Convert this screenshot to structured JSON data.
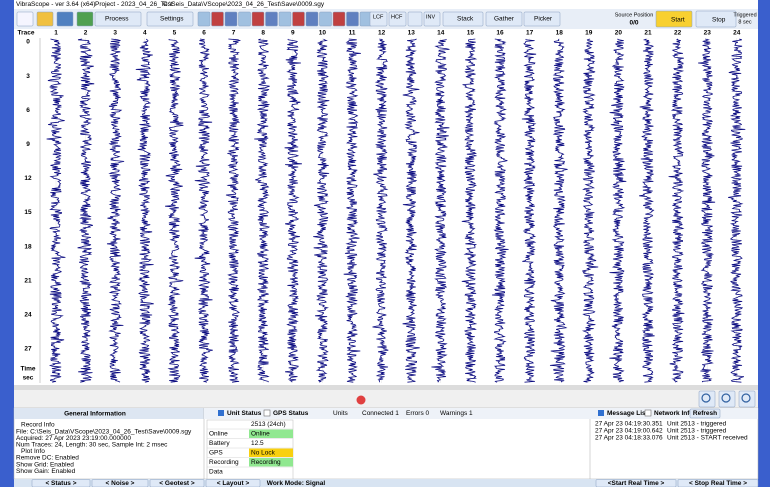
{
  "title_bar": {
    "app": "VibraScope - ver 3.64 (x64)",
    "project": "Project - 2023_04_26_Test",
    "path": "C:\\Seis_Data\\VScope\\2023_04_26_Test\\Save\\0009.sgy"
  },
  "toolbar": {
    "process": "Process",
    "settings": "Settings",
    "lcf": "LCF",
    "hcf": "HCF",
    "inv": "INV",
    "stack": "Stack",
    "gather": "Gather",
    "picker": "Picker",
    "source_position": "Source Position",
    "source_value": "0/0",
    "start": "Start",
    "stop": "Stop",
    "triggered": "Triggered",
    "triggered_value": "8 sec"
  },
  "plot": {
    "trace_label": "Trace",
    "traces": [
      "1",
      "2",
      "3",
      "4",
      "5",
      "6",
      "7",
      "8",
      "9",
      "10",
      "11",
      "12",
      "13",
      "14",
      "15",
      "16",
      "17",
      "18",
      "19",
      "20",
      "21",
      "22",
      "23",
      "24"
    ],
    "time_ticks": [
      "0",
      "3",
      "6",
      "9",
      "12",
      "15",
      "18",
      "21",
      "24",
      "27"
    ],
    "time_label": "Time",
    "time_unit": "sec"
  },
  "general_info": {
    "title": "General Information",
    "lines": [
      "Record Info",
      "File: C:\\Seis_Data\\VScope\\2023_04_26_Test\\Save\\0009.sgy",
      "Acquired: 27 Apr 2023 23:19:00.000000",
      "Num Traces: 24, Length: 30 sec, Sample Int: 2 msec",
      "Plot Info",
      "Remove DC: Enabled",
      "Show Grid: Enabled",
      "Show Gain: Enabled"
    ]
  },
  "unit_status": {
    "unit_tab": "Unit Status",
    "gps_tab": "GPS Status",
    "units": "Units",
    "connected": "Connected 1",
    "errors": "Errors 0",
    "warnings": "Warnings 1",
    "unit_header": "2513 (24ch)",
    "rows": [
      [
        "Online",
        "Online"
      ],
      [
        "Battery",
        "12.5"
      ],
      [
        "GPS",
        "No Lock"
      ],
      [
        "Recording",
        "Recording"
      ],
      [
        "Data"
      ]
    ]
  },
  "messages": {
    "tab": "Message List",
    "network_tab": "Network Info",
    "refresh": "Refresh",
    "rows": [
      [
        "27 Apr 23 04:19:30.351",
        "Unit 2513 - triggered"
      ],
      [
        "27 Apr 23 04:19:00.642",
        "Unit 2513 - triggered"
      ],
      [
        "27 Apr 23 04:18:33.076",
        "Unit 2513 - START received"
      ]
    ]
  },
  "bottom_bar": {
    "status": "< Status >",
    "noise": "< Noise >",
    "geotest": "< Geotest >",
    "layout": "< Layout >",
    "work_mode": "Work Mode: Signal",
    "start_rt": "<Start Real Time >",
    "stop_rt": "< Stop Real Time >"
  }
}
